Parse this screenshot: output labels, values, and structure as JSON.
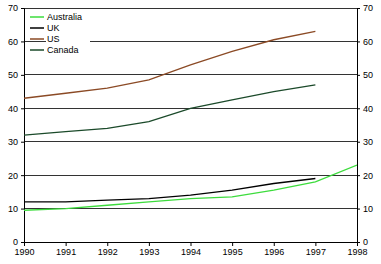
{
  "chart_data": {
    "type": "line",
    "x": [
      1990,
      1991,
      1992,
      1993,
      1994,
      1995,
      1996,
      1997,
      1998
    ],
    "series": [
      {
        "name": "Australia",
        "color": "#3ddc3d",
        "values": [
          9.5,
          10,
          11,
          12,
          13,
          13.5,
          15.5,
          18,
          23
        ]
      },
      {
        "name": "UK",
        "color": "#000000",
        "values": [
          12,
          12,
          12.5,
          13,
          14,
          15.5,
          17.5,
          19,
          null
        ]
      },
      {
        "name": "US",
        "color": "#8b4a25",
        "values": [
          43,
          44.5,
          46,
          48.5,
          53,
          57,
          60.5,
          63,
          null
        ]
      },
      {
        "name": "Canada",
        "color": "#1b4a2a",
        "values": [
          32,
          33,
          34,
          36,
          40,
          42.5,
          45,
          47,
          null
        ]
      }
    ],
    "xlim": [
      1990,
      1998
    ],
    "xticks": [
      1990,
      1991,
      1992,
      1993,
      1994,
      1995,
      1996,
      1997,
      1998
    ],
    "ylim": [
      0,
      70
    ],
    "yticks": [
      0,
      10,
      20,
      30,
      40,
      50,
      60,
      70
    ],
    "y2lim": [
      0,
      70
    ],
    "y2ticks": [
      0,
      10,
      20,
      30,
      40,
      50,
      60,
      70
    ],
    "grid": true,
    "legend": "upper left"
  }
}
